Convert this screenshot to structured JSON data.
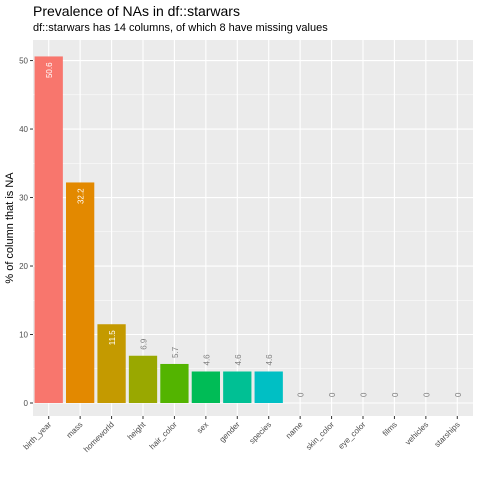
{
  "chart_data": {
    "type": "bar",
    "title": "Prevalence of NAs in df::starwars",
    "subtitle": "df::starwars has 14 columns, of which 8 have missing values",
    "xlabel": "",
    "ylabel": "% of column that is NA",
    "ylim": [
      0,
      53
    ],
    "yticks": [
      0,
      10,
      20,
      30,
      40,
      50
    ],
    "categories": [
      "birth_year",
      "mass",
      "homeworld",
      "height",
      "hair_color",
      "sex",
      "gender",
      "species",
      "name",
      "skin_color",
      "eye_color",
      "films",
      "vehicles",
      "starships"
    ],
    "values": [
      50.6,
      32.2,
      11.5,
      6.9,
      5.7,
      4.6,
      4.6,
      4.6,
      0,
      0,
      0,
      0,
      0,
      0
    ],
    "labels": [
      "50.6",
      "32.2",
      "11.5",
      "6.9",
      "5.7",
      "4.6",
      "4.6",
      "4.6",
      "0",
      "0",
      "0",
      "0",
      "0",
      "0"
    ],
    "colors": [
      "#F8766D",
      "#E38900",
      "#C49A00",
      "#99A800",
      "#53B400",
      "#00BC56",
      "#00C094",
      "#00BFC4",
      "#00B6EB",
      "#06A4FF",
      "#A58AFF",
      "#DF70F8",
      "#FB61D7",
      "#FF66A8"
    ],
    "panel_background": "#EBEBEB",
    "grid": true,
    "legend": "none"
  }
}
